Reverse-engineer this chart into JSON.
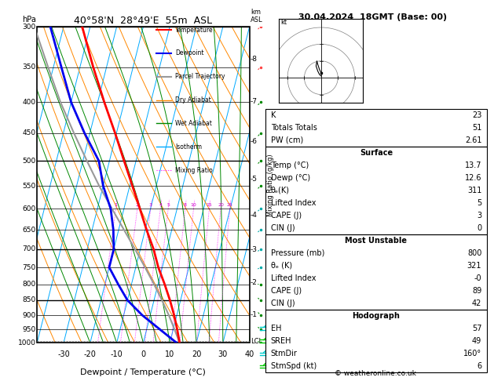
{
  "title_left": "40°58'N  28°49'E  55m  ASL",
  "title_right": "30.04.2024  18GMT (Base: 00)",
  "xlabel": "Dewpoint / Temperature (°C)",
  "pressure_levels": [
    300,
    350,
    400,
    450,
    500,
    550,
    600,
    650,
    700,
    750,
    800,
    850,
    900,
    950,
    1000
  ],
  "T_min": -40,
  "T_max": 40,
  "skew_factor": 30,
  "km_ticks": [
    1,
    2,
    3,
    4,
    5,
    6,
    7,
    8
  ],
  "km_pressures": [
    898,
    795,
    701,
    615,
    536,
    464,
    399,
    340
  ],
  "lcl_pressure": 993,
  "temperature_profile": {
    "pressure": [
      1000,
      950,
      900,
      850,
      800,
      750,
      700,
      650,
      600,
      550,
      500,
      450,
      400,
      350,
      300
    ],
    "temperature": [
      13.7,
      11.5,
      9.0,
      6.0,
      2.5,
      -1.5,
      -5.0,
      -9.5,
      -14.0,
      -19.0,
      -24.5,
      -30.5,
      -37.5,
      -45.0,
      -53.0
    ]
  },
  "dewpoint_profile": {
    "pressure": [
      1000,
      950,
      900,
      850,
      800,
      750,
      700,
      650,
      600,
      550,
      500,
      450,
      400,
      350,
      300
    ],
    "temperature": [
      12.6,
      5.0,
      -3.0,
      -10.0,
      -15.0,
      -20.0,
      -20.0,
      -22.0,
      -25.0,
      -30.0,
      -34.0,
      -42.0,
      -50.0,
      -57.0,
      -65.0
    ]
  },
  "parcel_profile": {
    "pressure": [
      1000,
      950,
      900,
      850,
      800,
      750,
      700,
      650,
      600,
      550,
      500,
      450,
      400,
      350,
      300
    ],
    "temperature": [
      13.7,
      10.5,
      7.0,
      3.0,
      -1.5,
      -6.5,
      -12.0,
      -18.0,
      -24.5,
      -31.5,
      -38.5,
      -46.0,
      -54.0,
      -62.0,
      -71.0
    ]
  },
  "stats": {
    "K": 23,
    "Totals_Totals": 51,
    "PW_cm": 2.61,
    "Surface_Temp": 13.7,
    "Surface_Dewp": 12.6,
    "Surface_theta_e": 311,
    "Surface_Lifted_Index": 5,
    "Surface_CAPE": 3,
    "Surface_CIN": 0,
    "MU_Pressure": 800,
    "MU_theta_e": 321,
    "MU_Lifted_Index": 0,
    "MU_CAPE": 89,
    "MU_CIN": 42,
    "EH": 57,
    "SREH": 49,
    "StmDir": 160,
    "StmSpd": 6
  },
  "colors": {
    "temperature": "#ff0000",
    "dewpoint": "#0000ee",
    "parcel": "#999999",
    "dry_adiabat": "#ff8800",
    "wet_adiabat": "#008800",
    "isotherm": "#00aaff",
    "mixing_ratio": "#ff00ff",
    "background": "#ffffff",
    "grid": "#000000"
  },
  "legend_labels": [
    "Temperature",
    "Dewpoint",
    "Parcel Trajectory",
    "Dry Adiabat",
    "Wet Adiabat",
    "Isotherm",
    "Mixing Ratio"
  ],
  "legend_colors": [
    "#ff0000",
    "#0000ee",
    "#999999",
    "#ff8800",
    "#008800",
    "#00aaff",
    "#ff00ff"
  ],
  "legend_styles": [
    "-",
    "-",
    "-",
    "-",
    "-",
    "-",
    ":"
  ],
  "mixing_ratio_vals": [
    1,
    2,
    3,
    4,
    5,
    8,
    10,
    15,
    20,
    25
  ]
}
